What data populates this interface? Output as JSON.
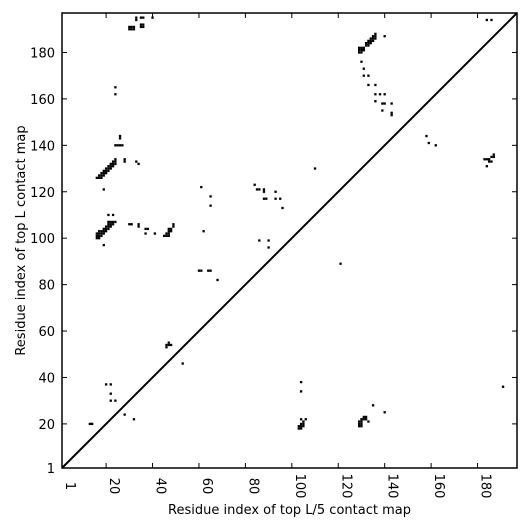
{
  "chart_data": {
    "type": "scatter",
    "subtype": "contact-map",
    "xlabel": "Residue index of top L/5 contact map",
    "ylabel": "Residue index of top L contact map",
    "xlim": [
      1,
      197
    ],
    "ylim": [
      1,
      197
    ],
    "xticks": [
      1,
      20,
      40,
      60,
      80,
      100,
      120,
      140,
      160,
      180
    ],
    "yticks": [
      1,
      20,
      40,
      60,
      80,
      100,
      120,
      140,
      160,
      180
    ],
    "xtick_labels": [
      "1",
      "20",
      "40",
      "60",
      "80",
      "100",
      "120",
      "140",
      "160",
      "180"
    ],
    "ytick_labels": [
      "1",
      "20",
      "40",
      "60",
      "80",
      "100",
      "120",
      "140",
      "160",
      "180"
    ],
    "grid": false,
    "marker_color": "#000000",
    "diagonal_line": {
      "from": [
        1,
        1
      ],
      "to": [
        197,
        197
      ],
      "color": "#000000"
    },
    "upper_left_contacts": [
      [
        30,
        191
      ],
      [
        30,
        190
      ],
      [
        31,
        191
      ],
      [
        31,
        190
      ],
      [
        32,
        191
      ],
      [
        32,
        190
      ],
      [
        33,
        194
      ],
      [
        33,
        195
      ],
      [
        35,
        195
      ],
      [
        36,
        195
      ],
      [
        35,
        192
      ],
      [
        35,
        191
      ],
      [
        36,
        192
      ],
      [
        36,
        191
      ],
      [
        40,
        195
      ],
      [
        16,
        126
      ],
      [
        17,
        126
      ],
      [
        18,
        126
      ],
      [
        17,
        127
      ],
      [
        18,
        127
      ],
      [
        19,
        127
      ],
      [
        18,
        128
      ],
      [
        19,
        128
      ],
      [
        20,
        128
      ],
      [
        19,
        129
      ],
      [
        20,
        129
      ],
      [
        21,
        129
      ],
      [
        20,
        130
      ],
      [
        21,
        130
      ],
      [
        22,
        130
      ],
      [
        21,
        131
      ],
      [
        22,
        131
      ],
      [
        23,
        131
      ],
      [
        22,
        132
      ],
      [
        23,
        132
      ],
      [
        24,
        132
      ],
      [
        23,
        133
      ],
      [
        24,
        133
      ],
      [
        24,
        134
      ],
      [
        19,
        121
      ],
      [
        24,
        140
      ],
      [
        25,
        140
      ],
      [
        26,
        140
      ],
      [
        27,
        140
      ],
      [
        26,
        143
      ],
      [
        26,
        144
      ],
      [
        28,
        133
      ],
      [
        28,
        134
      ],
      [
        33,
        133
      ],
      [
        34,
        132
      ],
      [
        24,
        162
      ],
      [
        24,
        165
      ],
      [
        16,
        100
      ],
      [
        17,
        100
      ],
      [
        16,
        101
      ],
      [
        17,
        101
      ],
      [
        18,
        101
      ],
      [
        16,
        102
      ],
      [
        17,
        102
      ],
      [
        18,
        102
      ],
      [
        19,
        102
      ],
      [
        17,
        103
      ],
      [
        18,
        103
      ],
      [
        19,
        103
      ],
      [
        20,
        103
      ],
      [
        19,
        104
      ],
      [
        20,
        104
      ],
      [
        21,
        104
      ],
      [
        20,
        105
      ],
      [
        21,
        105
      ],
      [
        22,
        105
      ],
      [
        21,
        106
      ],
      [
        22,
        106
      ],
      [
        23,
        106
      ],
      [
        22,
        107
      ],
      [
        23,
        107
      ],
      [
        24,
        107
      ],
      [
        19,
        97
      ],
      [
        21,
        110
      ],
      [
        23,
        110
      ],
      [
        21,
        107
      ],
      [
        30,
        106
      ],
      [
        31,
        106
      ],
      [
        34,
        105
      ],
      [
        34,
        106
      ],
      [
        37,
        104
      ],
      [
        38,
        104
      ],
      [
        37,
        102
      ],
      [
        41,
        102
      ],
      [
        45,
        101
      ],
      [
        46,
        101
      ],
      [
        47,
        101
      ],
      [
        46,
        102
      ],
      [
        47,
        102
      ],
      [
        47,
        103
      ],
      [
        48,
        103
      ],
      [
        47,
        104
      ],
      [
        48,
        104
      ],
      [
        49,
        105
      ],
      [
        49,
        106
      ],
      [
        46,
        53
      ],
      [
        46,
        54
      ],
      [
        47,
        54
      ],
      [
        48,
        54
      ],
      [
        47,
        55
      ],
      [
        53,
        46
      ],
      [
        20,
        37
      ],
      [
        22,
        37
      ],
      [
        22,
        33
      ],
      [
        22,
        30
      ],
      [
        24,
        30
      ],
      [
        28,
        24
      ],
      [
        32,
        22
      ],
      [
        13,
        20
      ],
      [
        14,
        20
      ],
      [
        60,
        86
      ],
      [
        61,
        86
      ],
      [
        64,
        86
      ],
      [
        65,
        86
      ],
      [
        68,
        82
      ],
      [
        61,
        122
      ],
      [
        62,
        103
      ],
      [
        65,
        118
      ],
      [
        65,
        114
      ],
      [
        84,
        123
      ],
      [
        85,
        121
      ],
      [
        86,
        121
      ],
      [
        88,
        120
      ],
      [
        88,
        121
      ],
      [
        88,
        117
      ],
      [
        89,
        117
      ],
      [
        93,
        120
      ],
      [
        93,
        117
      ],
      [
        95,
        117
      ],
      [
        96,
        113
      ],
      [
        86,
        99
      ],
      [
        90,
        99
      ],
      [
        90,
        96
      ],
      [
        110,
        130
      ],
      [
        121,
        89
      ],
      [
        129,
        182
      ],
      [
        130,
        182
      ],
      [
        131,
        182
      ],
      [
        129,
        181
      ],
      [
        130,
        181
      ],
      [
        131,
        181
      ],
      [
        129,
        180
      ],
      [
        130,
        180
      ],
      [
        131,
        181
      ],
      [
        132,
        183
      ],
      [
        133,
        183
      ],
      [
        132,
        184
      ],
      [
        133,
        184
      ],
      [
        134,
        184
      ],
      [
        133,
        185
      ],
      [
        134,
        185
      ],
      [
        135,
        185
      ],
      [
        134,
        186
      ],
      [
        135,
        186
      ],
      [
        136,
        186
      ],
      [
        135,
        187
      ],
      [
        136,
        187
      ],
      [
        136,
        188
      ],
      [
        140,
        187
      ],
      [
        130,
        176
      ],
      [
        131,
        173
      ],
      [
        131,
        170
      ],
      [
        133,
        170
      ],
      [
        133,
        166
      ],
      [
        136,
        166
      ],
      [
        136,
        162
      ],
      [
        138,
        162
      ],
      [
        140,
        162
      ],
      [
        139,
        158
      ],
      [
        140,
        158
      ],
      [
        139,
        155
      ],
      [
        143,
        158
      ],
      [
        143,
        154
      ],
      [
        143,
        153
      ],
      [
        136,
        159
      ],
      [
        158,
        144
      ],
      [
        159,
        141
      ],
      [
        162,
        140
      ],
      [
        183,
        134
      ],
      [
        184,
        134
      ],
      [
        184,
        131
      ],
      [
        185,
        134
      ],
      [
        185,
        133
      ],
      [
        186,
        133
      ],
      [
        186,
        135
      ],
      [
        187,
        135
      ],
      [
        187,
        136
      ],
      [
        184,
        194
      ],
      [
        186,
        194
      ]
    ],
    "lower_right_contacts": [
      [
        103,
        18
      ],
      [
        104,
        18
      ],
      [
        103,
        19
      ],
      [
        104,
        19
      ],
      [
        104,
        20
      ],
      [
        105,
        19
      ],
      [
        105,
        20
      ],
      [
        105,
        21
      ],
      [
        104,
        22
      ],
      [
        106,
        22
      ],
      [
        104,
        34
      ],
      [
        104,
        38
      ],
      [
        129,
        19
      ],
      [
        130,
        19
      ],
      [
        129,
        20
      ],
      [
        130,
        20
      ],
      [
        129,
        21
      ],
      [
        130,
        21
      ],
      [
        130,
        22
      ],
      [
        131,
        22
      ],
      [
        131,
        23
      ],
      [
        132,
        23
      ],
      [
        132,
        22
      ],
      [
        133,
        21
      ],
      [
        135,
        28
      ],
      [
        140,
        25
      ],
      [
        191,
        36
      ]
    ]
  }
}
